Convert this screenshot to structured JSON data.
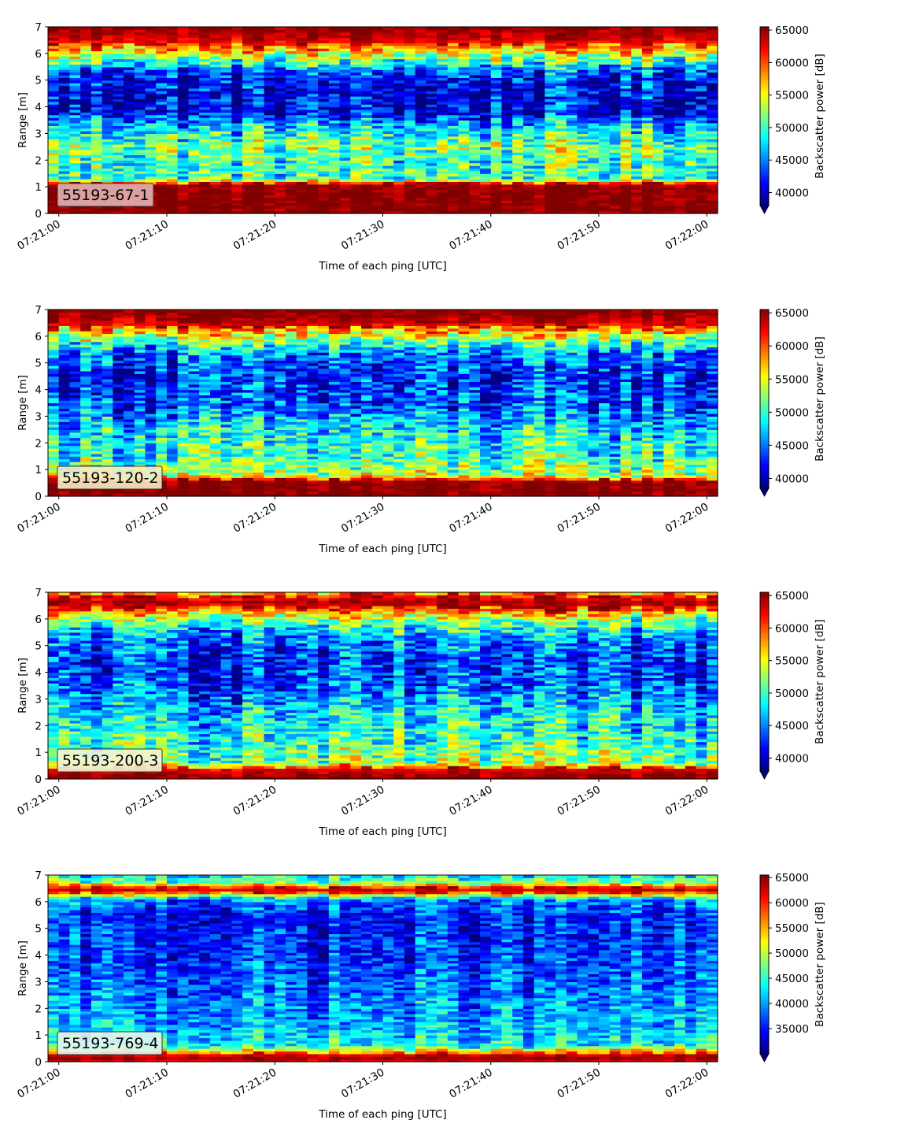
{
  "chart_data": [
    {
      "type": "heatmap",
      "label": "55193-67-1",
      "label_bg": "#e2b2b2",
      "xlabel": "Time of each ping [UTC]",
      "ylabel": "Range [m]",
      "xticks": [
        "07:21:00",
        "07:21:10",
        "07:21:20",
        "07:21:30",
        "07:21:40",
        "07:21:50",
        "07:22:00"
      ],
      "yticks": [
        "0",
        "1",
        "2",
        "3",
        "4",
        "5",
        "6",
        "7"
      ],
      "ylim": [
        0,
        7
      ],
      "xlim_seconds": [
        -1,
        61
      ],
      "colorbar_label": "Backscatter power [dB]",
      "colorbar_ticks": [
        "40000",
        "45000",
        "50000",
        "55000",
        "60000",
        "65000"
      ],
      "clim": [
        38000,
        65500
      ],
      "colormap": "jet",
      "range_profile_m": [
        {
          "range": 0.0,
          "value": 65500
        },
        {
          "range": 0.25,
          "value": 65500
        },
        {
          "range": 1.1,
          "value": 65000
        },
        {
          "range": 1.3,
          "value": 50000
        },
        {
          "range": 2.0,
          "value": 50000
        },
        {
          "range": 2.5,
          "value": 52000
        },
        {
          "range": 3.3,
          "value": 47000
        },
        {
          "range": 3.8,
          "value": 41000
        },
        {
          "range": 4.5,
          "value": 40500
        },
        {
          "range": 5.3,
          "value": 43000
        },
        {
          "range": 5.7,
          "value": 50000
        },
        {
          "range": 6.2,
          "value": 58000
        },
        {
          "range": 6.5,
          "value": 63000
        },
        {
          "range": 7.0,
          "value": 65500
        }
      ]
    },
    {
      "type": "heatmap",
      "label": "55193-120-2",
      "label_bg": "#f6ecc4",
      "xlabel": "Time of each ping [UTC]",
      "ylabel": "Range [m]",
      "xticks": [
        "07:21:00",
        "07:21:10",
        "07:21:20",
        "07:21:30",
        "07:21:40",
        "07:21:50",
        "07:22:00"
      ],
      "yticks": [
        "0",
        "1",
        "2",
        "3",
        "4",
        "5",
        "6",
        "7"
      ],
      "ylim": [
        0,
        7
      ],
      "xlim_seconds": [
        -1,
        61
      ],
      "colorbar_label": "Backscatter power [dB]",
      "colorbar_ticks": [
        "40000",
        "45000",
        "50000",
        "55000",
        "60000",
        "65000"
      ],
      "clim": [
        38500,
        65500
      ],
      "colormap": "jet",
      "range_profile_m": [
        {
          "range": 0.0,
          "value": 65500
        },
        {
          "range": 0.55,
          "value": 65000
        },
        {
          "range": 0.8,
          "value": 53000
        },
        {
          "range": 1.5,
          "value": 50000
        },
        {
          "range": 2.5,
          "value": 48000
        },
        {
          "range": 3.5,
          "value": 43500
        },
        {
          "range": 4.5,
          "value": 42500
        },
        {
          "range": 5.3,
          "value": 44500
        },
        {
          "range": 5.8,
          "value": 50500
        },
        {
          "range": 6.2,
          "value": 57000
        },
        {
          "range": 6.5,
          "value": 63500
        },
        {
          "range": 7.0,
          "value": 65500
        }
      ]
    },
    {
      "type": "heatmap",
      "label": "55193-200-3",
      "label_bg": "#f3f4d6",
      "xlabel": "Time of each ping [UTC]",
      "ylabel": "Range [m]",
      "xticks": [
        "07:21:00",
        "07:21:10",
        "07:21:20",
        "07:21:30",
        "07:21:40",
        "07:21:50",
        "07:22:00"
      ],
      "yticks": [
        "0",
        "1",
        "2",
        "3",
        "4",
        "5",
        "6",
        "7"
      ],
      "ylim": [
        0,
        7
      ],
      "xlim_seconds": [
        -1,
        61
      ],
      "colorbar_label": "Backscatter power [dB]",
      "colorbar_ticks": [
        "40000",
        "45000",
        "50000",
        "55000",
        "60000",
        "65000"
      ],
      "clim": [
        38000,
        65500
      ],
      "colormap": "jet",
      "range_profile_m": [
        {
          "range": 0.0,
          "value": 65500
        },
        {
          "range": 0.35,
          "value": 63000
        },
        {
          "range": 0.6,
          "value": 52000
        },
        {
          "range": 1.5,
          "value": 49000
        },
        {
          "range": 2.5,
          "value": 47000
        },
        {
          "range": 3.5,
          "value": 43000
        },
        {
          "range": 4.5,
          "value": 42000
        },
        {
          "range": 5.3,
          "value": 44500
        },
        {
          "range": 5.9,
          "value": 50000
        },
        {
          "range": 6.3,
          "value": 58000
        },
        {
          "range": 6.6,
          "value": 64500
        },
        {
          "range": 6.85,
          "value": 62000
        },
        {
          "range": 7.0,
          "value": 57000
        }
      ]
    },
    {
      "type": "heatmap",
      "label": "55193-769-4",
      "label_bg": "#e4f5ef",
      "xlabel": "Time of each ping [UTC]",
      "ylabel": "Range [m]",
      "xticks": [
        "07:21:00",
        "07:21:10",
        "07:21:20",
        "07:21:30",
        "07:21:40",
        "07:21:50",
        "07:22:00"
      ],
      "yticks": [
        "0",
        "1",
        "2",
        "3",
        "4",
        "5",
        "6",
        "7"
      ],
      "ylim": [
        0,
        7
      ],
      "xlim_seconds": [
        -1,
        61
      ],
      "colorbar_label": "Backscatter power [dB]",
      "colorbar_ticks": [
        "35000",
        "40000",
        "45000",
        "50000",
        "55000",
        "60000",
        "65000"
      ],
      "clim": [
        30000,
        65500
      ],
      "colormap": "jet",
      "range_profile_m": [
        {
          "range": 0.0,
          "value": 62000
        },
        {
          "range": 0.2,
          "value": 65500
        },
        {
          "range": 0.35,
          "value": 57000
        },
        {
          "range": 0.6,
          "value": 43000
        },
        {
          "range": 1.5,
          "value": 40000
        },
        {
          "range": 2.5,
          "value": 38500
        },
        {
          "range": 3.5,
          "value": 36500
        },
        {
          "range": 4.5,
          "value": 35500
        },
        {
          "range": 5.5,
          "value": 35000
        },
        {
          "range": 6.1,
          "value": 39000
        },
        {
          "range": 6.35,
          "value": 58000
        },
        {
          "range": 6.5,
          "value": 64500
        },
        {
          "range": 6.7,
          "value": 48000
        },
        {
          "range": 7.0,
          "value": 42000
        }
      ]
    }
  ]
}
